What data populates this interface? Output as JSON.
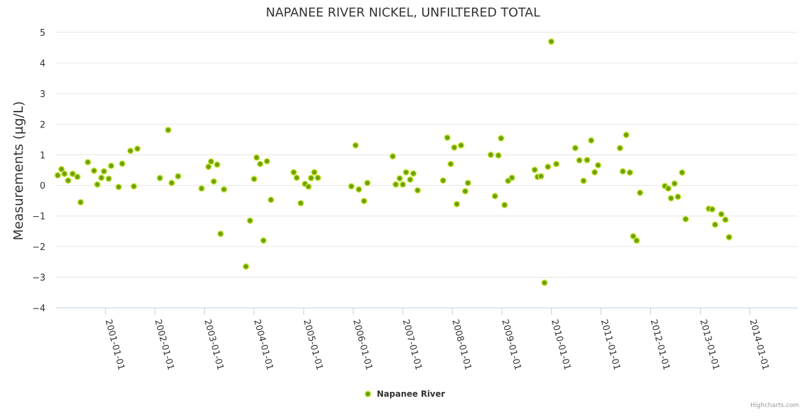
{
  "chart_data": {
    "type": "scatter",
    "title": "NAPANEE RIVER NICKEL, UNFILTERED TOTAL",
    "xlabel": "",
    "ylabel": "Measurements (µg/L)",
    "ylim": [
      -4,
      5
    ],
    "yticks": [
      5,
      4,
      3,
      2,
      1,
      0,
      -1,
      -2,
      -3,
      -4
    ],
    "xlim": [
      "2000-01-01",
      "2014-12-20"
    ],
    "xticks": [
      "2001-01-01",
      "2002-01-01",
      "2003-01-01",
      "2004-01-01",
      "2005-01-01",
      "2006-01-01",
      "2007-01-01",
      "2008-01-01",
      "2009-01-01",
      "2010-01-01",
      "2011-01-01",
      "2012-01-01",
      "2013-01-01",
      "2014-01-01"
    ],
    "grid": true,
    "legend_position": "bottom-center",
    "series": [
      {
        "name": "Napanee River",
        "color": "#6ca10a",
        "points": [
          [
            "2000-01-15",
            0.33
          ],
          [
            "2000-02-12",
            0.53
          ],
          [
            "2000-03-05",
            0.38
          ],
          [
            "2000-04-01",
            0.16
          ],
          [
            "2000-05-04",
            0.38
          ],
          [
            "2000-06-08",
            0.28
          ],
          [
            "2000-07-02",
            -0.55
          ],
          [
            "2000-08-24",
            0.76
          ],
          [
            "2000-10-09",
            0.48
          ],
          [
            "2000-11-02",
            0.03
          ],
          [
            "2000-12-02",
            0.25
          ],
          [
            "2000-12-21",
            0.46
          ],
          [
            "2001-01-25",
            0.22
          ],
          [
            "2001-02-12",
            0.64
          ],
          [
            "2001-04-08",
            -0.05
          ],
          [
            "2001-05-04",
            0.71
          ],
          [
            "2001-07-04",
            1.13
          ],
          [
            "2001-07-29",
            -0.03
          ],
          [
            "2001-08-24",
            1.2
          ],
          [
            "2002-02-06",
            0.24
          ],
          [
            "2002-04-08",
            1.81
          ],
          [
            "2002-05-04",
            0.08
          ],
          [
            "2002-06-20",
            0.3
          ],
          [
            "2002-12-10",
            -0.1
          ],
          [
            "2003-01-30",
            0.61
          ],
          [
            "2003-02-18",
            0.78
          ],
          [
            "2003-03-10",
            0.13
          ],
          [
            "2003-04-04",
            0.68
          ],
          [
            "2003-04-29",
            -1.58
          ],
          [
            "2003-05-24",
            -0.13
          ],
          [
            "2003-11-02",
            -2.65
          ],
          [
            "2003-12-02",
            -1.15
          ],
          [
            "2004-01-01",
            0.21
          ],
          [
            "2004-01-20",
            0.91
          ],
          [
            "2004-02-15",
            0.7
          ],
          [
            "2004-03-10",
            -1.8
          ],
          [
            "2004-04-05",
            0.79
          ],
          [
            "2004-05-04",
            -0.47
          ],
          [
            "2004-10-19",
            0.43
          ],
          [
            "2004-11-10",
            0.25
          ],
          [
            "2004-12-10",
            -0.58
          ],
          [
            "2005-01-10",
            0.05
          ],
          [
            "2005-02-05",
            -0.04
          ],
          [
            "2005-02-24",
            0.24
          ],
          [
            "2005-03-20",
            0.43
          ],
          [
            "2005-04-15",
            0.25
          ],
          [
            "2005-12-18",
            -0.03
          ],
          [
            "2006-01-18",
            1.31
          ],
          [
            "2006-02-11",
            -0.13
          ],
          [
            "2006-03-21",
            -0.51
          ],
          [
            "2006-04-15",
            0.08
          ],
          [
            "2006-10-19",
            0.95
          ],
          [
            "2006-11-10",
            0.03
          ],
          [
            "2006-12-09",
            0.23
          ],
          [
            "2007-01-01",
            0.03
          ],
          [
            "2007-01-25",
            0.43
          ],
          [
            "2007-02-24",
            0.19
          ],
          [
            "2007-03-20",
            0.39
          ],
          [
            "2007-04-20",
            -0.16
          ],
          [
            "2007-10-25",
            0.16
          ],
          [
            "2007-11-25",
            1.56
          ],
          [
            "2007-12-20",
            0.7
          ],
          [
            "2008-01-15",
            1.24
          ],
          [
            "2008-02-03",
            -0.61
          ],
          [
            "2008-03-05",
            1.31
          ],
          [
            "2008-04-05",
            -0.19
          ],
          [
            "2008-04-25",
            0.08
          ],
          [
            "2008-10-10",
            1.0
          ],
          [
            "2008-11-10",
            -0.35
          ],
          [
            "2008-12-05",
            0.98
          ],
          [
            "2008-12-25",
            1.54
          ],
          [
            "2009-01-20",
            -0.64
          ],
          [
            "2009-02-15",
            0.15
          ],
          [
            "2009-03-15",
            0.25
          ],
          [
            "2009-08-30",
            0.51
          ],
          [
            "2009-09-20",
            0.28
          ],
          [
            "2009-10-15",
            0.3
          ],
          [
            "2009-11-10",
            -3.18
          ],
          [
            "2009-12-05",
            0.61
          ],
          [
            "2009-12-30",
            4.7
          ],
          [
            "2010-02-05",
            0.7
          ],
          [
            "2010-06-25",
            1.22
          ],
          [
            "2010-07-25",
            0.82
          ],
          [
            "2010-08-25",
            0.15
          ],
          [
            "2010-09-20",
            0.83
          ],
          [
            "2010-10-20",
            1.47
          ],
          [
            "2010-11-15",
            0.43
          ],
          [
            "2010-12-10",
            0.66
          ],
          [
            "2011-05-20",
            1.22
          ],
          [
            "2011-06-10",
            0.46
          ],
          [
            "2011-07-05",
            1.65
          ],
          [
            "2011-08-01",
            0.42
          ],
          [
            "2011-08-26",
            -1.66
          ],
          [
            "2011-09-20",
            -1.8
          ],
          [
            "2011-10-15",
            -0.24
          ],
          [
            "2012-04-15",
            -0.02
          ],
          [
            "2012-05-10",
            -0.1
          ],
          [
            "2012-05-30",
            -0.42
          ],
          [
            "2012-06-25",
            0.06
          ],
          [
            "2012-07-20",
            -0.37
          ],
          [
            "2012-08-20",
            0.42
          ],
          [
            "2012-09-15",
            -1.1
          ],
          [
            "2013-03-05",
            -0.76
          ],
          [
            "2013-03-30",
            -0.78
          ],
          [
            "2013-04-20",
            -1.28
          ],
          [
            "2013-06-05",
            -0.94
          ],
          [
            "2013-07-05",
            -1.12
          ],
          [
            "2013-08-01",
            -1.69
          ]
        ]
      }
    ]
  },
  "credits": "Highcharts.com"
}
